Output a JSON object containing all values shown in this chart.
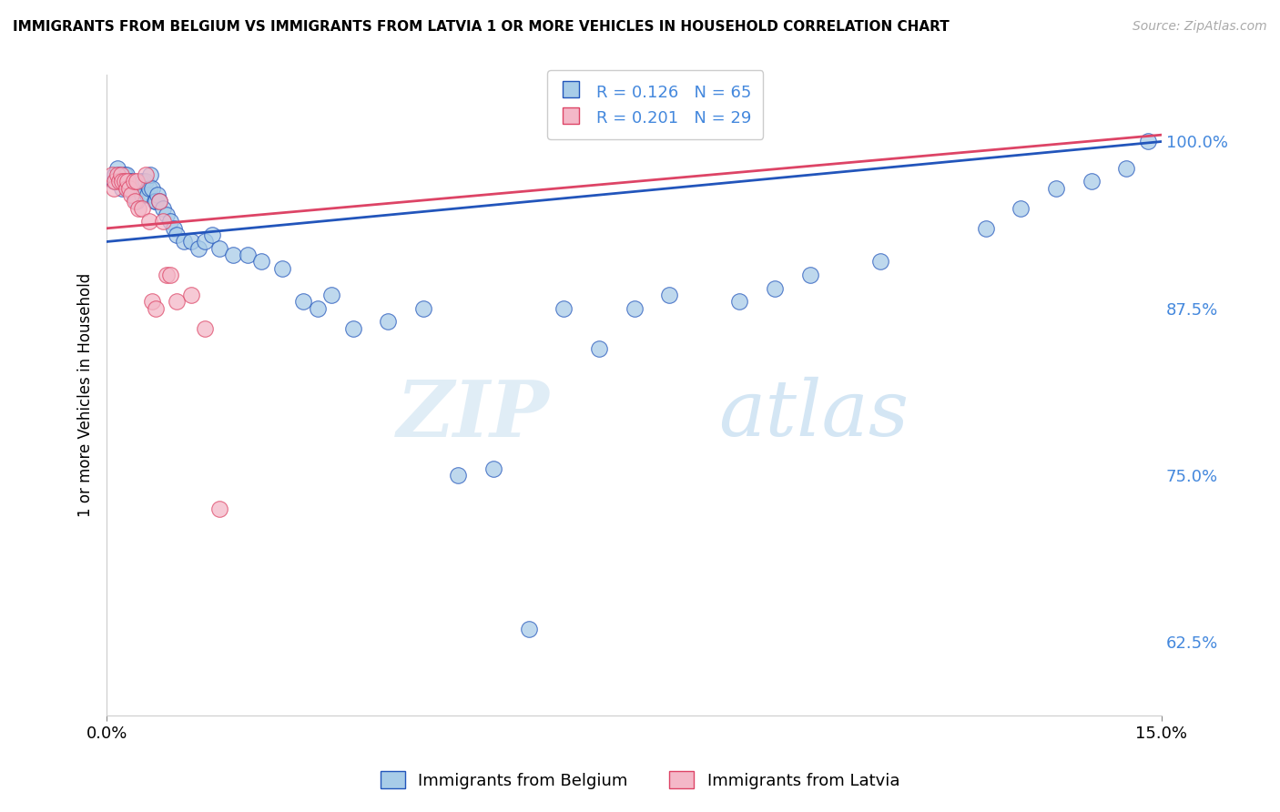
{
  "title": "IMMIGRANTS FROM BELGIUM VS IMMIGRANTS FROM LATVIA 1 OR MORE VEHICLES IN HOUSEHOLD CORRELATION CHART",
  "source": "Source: ZipAtlas.com",
  "ylabel": "1 or more Vehicles in Household",
  "xlim": [
    0.0,
    15.0
  ],
  "ylim": [
    57.0,
    105.0
  ],
  "y_ticks": [
    62.5,
    75.0,
    87.5,
    100.0
  ],
  "legend_label_1": "Immigrants from Belgium",
  "legend_label_2": "Immigrants from Latvia",
  "legend_r1": "R = 0.126",
  "legend_n1": "N = 65",
  "legend_r2": "R = 0.201",
  "legend_n2": "N = 29",
  "color_blue": "#a8cce8",
  "color_pink": "#f4b8c8",
  "line_color_blue": "#2255bb",
  "line_color_pink": "#dd4466",
  "watermark_zip": "ZIP",
  "watermark_atlas": "atlas",
  "blue_x": [
    0.1,
    0.12,
    0.15,
    0.18,
    0.2,
    0.22,
    0.25,
    0.28,
    0.3,
    0.32,
    0.35,
    0.38,
    0.4,
    0.42,
    0.45,
    0.48,
    0.5,
    0.52,
    0.55,
    0.58,
    0.6,
    0.62,
    0.65,
    0.68,
    0.7,
    0.72,
    0.75,
    0.8,
    0.85,
    0.9,
    0.95,
    1.0,
    1.1,
    1.2,
    1.3,
    1.4,
    1.5,
    1.6,
    1.8,
    2.0,
    2.2,
    2.5,
    2.8,
    3.0,
    3.2,
    3.5,
    4.0,
    4.5,
    5.0,
    5.5,
    6.0,
    6.5,
    7.0,
    7.5,
    8.0,
    9.0,
    9.5,
    10.0,
    11.0,
    12.5,
    13.0,
    13.5,
    14.0,
    14.5,
    14.8
  ],
  "blue_y": [
    97.0,
    97.5,
    98.0,
    97.5,
    97.0,
    96.5,
    97.5,
    97.5,
    96.5,
    97.0,
    97.0,
    96.0,
    96.5,
    95.5,
    96.5,
    97.0,
    96.0,
    97.0,
    97.0,
    96.0,
    96.5,
    97.5,
    96.5,
    95.5,
    95.5,
    96.0,
    95.5,
    95.0,
    94.5,
    94.0,
    93.5,
    93.0,
    92.5,
    92.5,
    92.0,
    92.5,
    93.0,
    92.0,
    91.5,
    91.5,
    91.0,
    90.5,
    88.0,
    87.5,
    88.5,
    86.0,
    86.5,
    87.5,
    75.0,
    75.5,
    63.5,
    87.5,
    84.5,
    87.5,
    88.5,
    88.0,
    89.0,
    90.0,
    91.0,
    93.5,
    95.0,
    96.5,
    97.0,
    98.0,
    100.0
  ],
  "pink_x": [
    0.08,
    0.1,
    0.12,
    0.15,
    0.18,
    0.2,
    0.22,
    0.25,
    0.28,
    0.3,
    0.32,
    0.35,
    0.38,
    0.4,
    0.42,
    0.45,
    0.5,
    0.55,
    0.6,
    0.65,
    0.7,
    0.75,
    0.8,
    0.85,
    0.9,
    1.0,
    1.2,
    1.4,
    1.6
  ],
  "pink_y": [
    97.5,
    96.5,
    97.0,
    97.5,
    97.0,
    97.5,
    97.0,
    97.0,
    96.5,
    97.0,
    96.5,
    96.0,
    97.0,
    95.5,
    97.0,
    95.0,
    95.0,
    97.5,
    94.0,
    88.0,
    87.5,
    95.5,
    94.0,
    90.0,
    90.0,
    88.0,
    88.5,
    86.0,
    72.5
  ],
  "reg_blue_x0": 0.0,
  "reg_blue_x1": 15.0,
  "reg_blue_y0": 92.5,
  "reg_blue_y1": 100.0,
  "reg_pink_x0": 0.0,
  "reg_pink_x1": 15.0,
  "reg_pink_y0": 93.5,
  "reg_pink_y1": 100.5
}
